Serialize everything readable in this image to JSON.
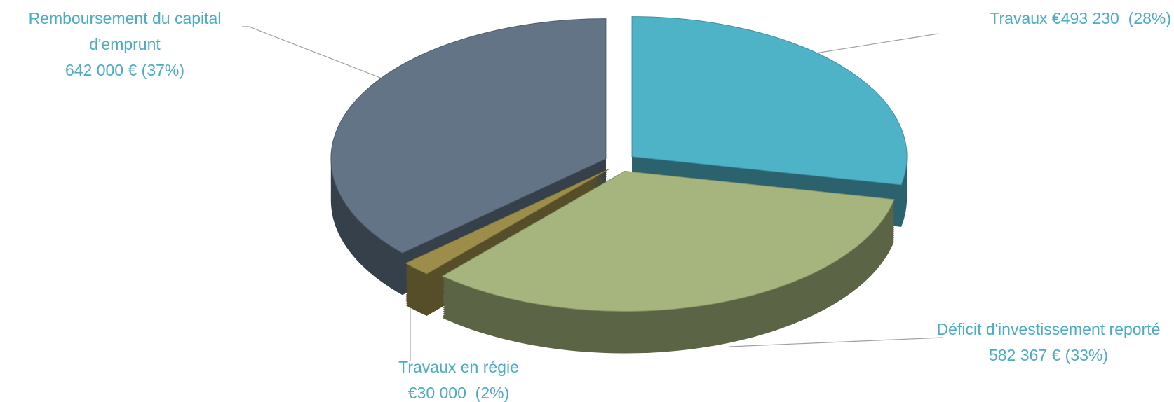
{
  "chart_data": {
    "type": "pie3d",
    "categories": [
      "Travaux",
      "Déficit d'investissement reporté",
      "Travaux en régie",
      "Remboursement du capital d'emprunt"
    ],
    "values": [
      493230,
      582367,
      30000,
      642000
    ],
    "value_labels": [
      "€493 230  (28%)",
      "582 367 € (33%)",
      "€30 000  (2%)",
      "642 000 € (37%)"
    ],
    "colors": [
      "#4fb3c8",
      "#a5b57d",
      "#9c8e4a",
      "#637487"
    ]
  }
}
